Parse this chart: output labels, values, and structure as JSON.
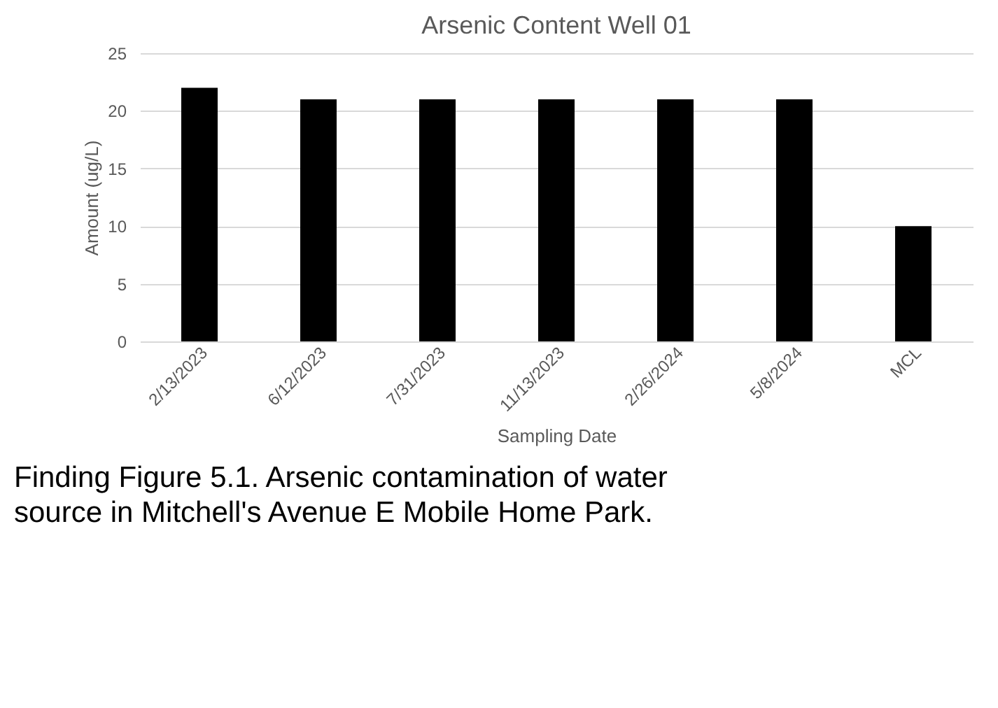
{
  "chart_data": {
    "type": "bar",
    "title": "Arsenic Content Well 01",
    "xlabel": "Sampling Date",
    "ylabel": "Amount (ug/L)",
    "categories": [
      "2/13/2023",
      "6/12/2023",
      "7/31/2023",
      "11/13/2023",
      "2/26/2024",
      "5/8/2024",
      "MCL"
    ],
    "values": [
      22,
      21,
      21,
      21,
      21,
      21,
      10
    ],
    "colors": [
      "#000000",
      "#000000",
      "#000000",
      "#000000",
      "#000000",
      "#000000",
      "#000000"
    ],
    "ylim": [
      0,
      25
    ],
    "yticks": [
      0,
      5,
      10,
      15,
      20,
      25
    ],
    "grid": "y",
    "annotations": [
      "Finding Figure 5.1. Arsenic contamination of water source in Mitchell's Avenue E Mobile Home Park."
    ]
  }
}
